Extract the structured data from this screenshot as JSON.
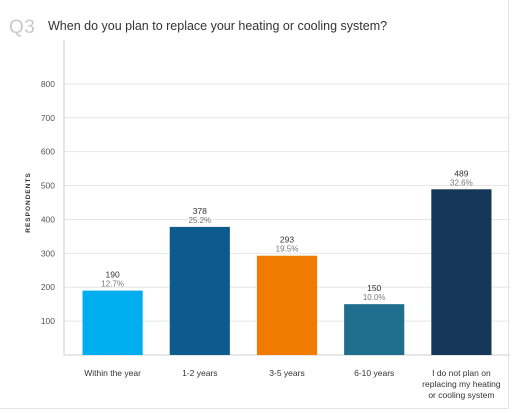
{
  "question": {
    "number": "Q3",
    "title": "When do you plan to replace your heating or cooling system?"
  },
  "chart_data": {
    "type": "bar",
    "ylabel": "RESPONDENTS",
    "ylim": [
      0,
      900
    ],
    "yticks": [
      100,
      200,
      300,
      400,
      500,
      600,
      700,
      800
    ],
    "grid": true,
    "categories": [
      [
        "Within the year"
      ],
      [
        "1-2 years"
      ],
      [
        "3-5 years"
      ],
      [
        "6-10 years"
      ],
      [
        "I do not plan on",
        "replacing my heating",
        "or cooling system"
      ]
    ],
    "values": [
      190,
      378,
      293,
      150,
      489
    ],
    "percent_labels": [
      "12.7%",
      "25.2%",
      "19.5%",
      "10.0%",
      "32.6%"
    ],
    "colors": [
      "#00aeef",
      "#0d5a8f",
      "#f07b00",
      "#1f6e8e",
      "#14375a"
    ]
  }
}
